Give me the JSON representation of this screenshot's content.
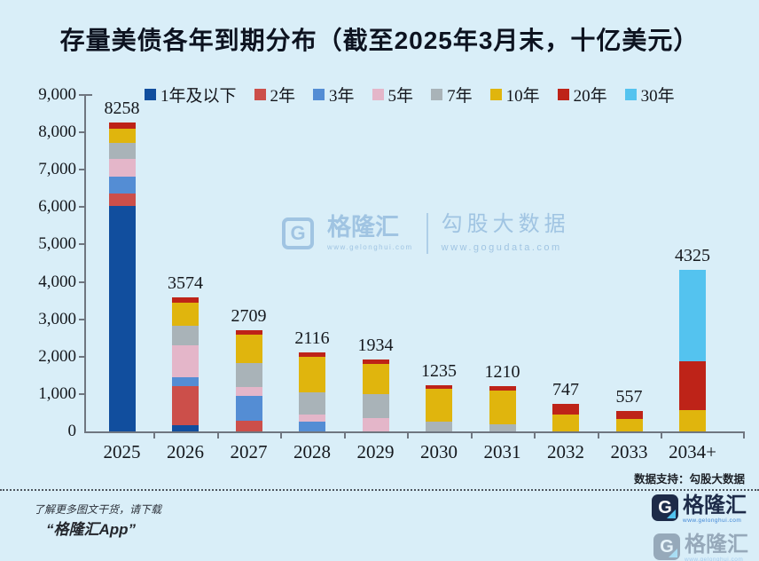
{
  "title": "存量美债各年到期分布（截至2025年3月末，十亿美元）",
  "watermark": {
    "logo_letter": "G",
    "brand": "格隆汇",
    "brand_url": "www.gelonghui.com",
    "right_title": "勾股大数据",
    "right_url": "www.gogudata.com"
  },
  "footer": {
    "support": "数据支持：勾股大数据",
    "promo_line1": "了解更多图文干货，请下载",
    "promo_line2": "“格隆汇App”",
    "logo_letter": "G",
    "logo_name": "格隆汇",
    "logo_url": "www.gelonghui.com"
  },
  "colors": {
    "background": "#D9EEF8",
    "axis": "#6F7680",
    "text": "#15181D"
  },
  "chart_data": {
    "type": "bar",
    "stacked": true,
    "title": "存量美债各年到期分布（截至2025年3月末，十亿美元）",
    "xlabel": "",
    "ylabel": "",
    "ylim": [
      0,
      9000
    ],
    "grid": false,
    "legend_position": "top",
    "categories": [
      "2025",
      "2026",
      "2027",
      "2028",
      "2029",
      "2030",
      "2031",
      "2032",
      "2033",
      "2034+"
    ],
    "totals": [
      8258,
      3574,
      2709,
      2116,
      1934,
      1235,
      1210,
      747,
      557,
      4325
    ],
    "ytick_labels": [
      "0",
      "1,000",
      "2,000",
      "3,000",
      "4,000",
      "5,000",
      "6,000",
      "7,000",
      "8,000",
      "9,000"
    ],
    "series": [
      {
        "name": "1年及以下",
        "color": "#114E9E",
        "values": [
          6020,
          170,
          0,
          0,
          0,
          0,
          0,
          0,
          0,
          0
        ]
      },
      {
        "name": "2年",
        "color": "#CC4F4A",
        "values": [
          345,
          1030,
          290,
          0,
          0,
          0,
          0,
          0,
          0,
          0
        ]
      },
      {
        "name": "3年",
        "color": "#548DD4",
        "values": [
          460,
          250,
          650,
          260,
          0,
          0,
          0,
          0,
          0,
          0
        ]
      },
      {
        "name": "5年",
        "color": "#E4B6C9",
        "values": [
          470,
          860,
          250,
          200,
          360,
          0,
          0,
          0,
          0,
          0
        ]
      },
      {
        "name": "7年",
        "color": "#A9B3B8",
        "values": [
          420,
          520,
          640,
          580,
          640,
          250,
          190,
          0,
          0,
          0
        ]
      },
      {
        "name": "10年",
        "color": "#E0B50D",
        "values": [
          390,
          620,
          750,
          960,
          810,
          880,
          900,
          460,
          330,
          560
        ]
      },
      {
        "name": "20年",
        "color": "#BE2318",
        "values": [
          153,
          124,
          129,
          116,
          124,
          105,
          120,
          287,
          227,
          1305
        ]
      },
      {
        "name": "30年",
        "color": "#54C3EF",
        "values": [
          0,
          0,
          0,
          0,
          0,
          0,
          0,
          0,
          0,
          2460
        ]
      }
    ]
  }
}
